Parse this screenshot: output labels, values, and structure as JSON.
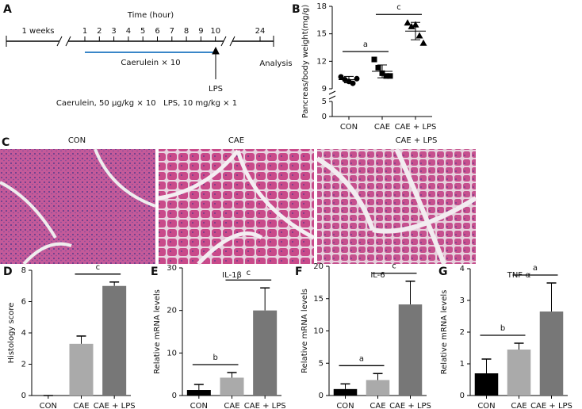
{
  "panel_labels": [
    "A",
    "B",
    "C",
    "D",
    "E",
    "F",
    "G"
  ],
  "timeline": {
    "axis_title": "Time (hour)",
    "period": "1 weeks",
    "ticks": [
      1,
      2,
      3,
      4,
      5,
      6,
      7,
      8,
      9,
      10
    ],
    "end_tick": 24,
    "treatment": "Caerulein × 10",
    "injection": "LPS",
    "endpoint": "Analysis",
    "dosing": "Caerulein, 50 μg/kg × 10   LPS, 10 mg/kg × 1"
  },
  "histology": {
    "groups": [
      "CON",
      "CAE",
      "CAE + LPS"
    ]
  },
  "chart_data": [
    {
      "type": "dot",
      "ylabel": "Pancreas/body weight(mg/g)",
      "categories": [
        "CON",
        "CAE",
        "CAE + LPS"
      ],
      "markers": [
        "circle",
        "square",
        "triangle"
      ],
      "color": "#000000",
      "points": [
        [
          10.3,
          10.0,
          9.8,
          9.6,
          10.1
        ],
        [
          12.2,
          11.3,
          10.7,
          10.4,
          10.4
        ],
        [
          16.2,
          15.8,
          16.0,
          14.8,
          14.0
        ]
      ],
      "means": [
        10.0,
        10.9,
        15.3
      ],
      "sd": [
        0.35,
        0.7,
        0.95
      ],
      "ylim": [
        0,
        18
      ],
      "yticks": [
        0,
        5,
        9,
        12,
        15,
        18
      ],
      "axis_break": [
        5,
        9
      ],
      "annotations": [
        {
          "text": "a",
          "between": [
            0,
            1
          ]
        },
        {
          "text": "c",
          "between": [
            1,
            2
          ]
        }
      ]
    },
    {
      "type": "bar",
      "ylabel": "Histology score",
      "categories": [
        "CON",
        "CAE",
        "CAE + LPS"
      ],
      "values": [
        0,
        3.3,
        7.0
      ],
      "errors": [
        0,
        0.5,
        0.25
      ],
      "colors": [
        "#000000",
        "#aaaaaa",
        "#777777"
      ],
      "ylim": [
        0,
        8
      ],
      "yticks": [
        0,
        2,
        4,
        6,
        8
      ],
      "annotations": [
        {
          "text": "c",
          "between": [
            1,
            2
          ]
        }
      ]
    },
    {
      "type": "bar",
      "title": "IL-1β",
      "ylabel": "Relative mRNA levels",
      "categories": [
        "CON",
        "CAE",
        "CAE + LPS"
      ],
      "values": [
        1.3,
        4.2,
        20.0
      ],
      "errors": [
        1.3,
        1.2,
        5.3
      ],
      "colors": [
        "#000000",
        "#aaaaaa",
        "#777777"
      ],
      "ylim": [
        0,
        30
      ],
      "yticks": [
        0,
        10,
        20,
        30
      ],
      "annotations": [
        {
          "text": "b",
          "between": [
            0,
            1
          ]
        },
        {
          "text": "c",
          "between": [
            1,
            2
          ]
        }
      ]
    },
    {
      "type": "bar",
      "title": "IL-6",
      "ylabel": "Relative mRNA levels",
      "categories": [
        "CON",
        "CAE",
        "CAE + LPS"
      ],
      "values": [
        1.0,
        2.4,
        14.1
      ],
      "errors": [
        0.8,
        1.0,
        3.6
      ],
      "colors": [
        "#000000",
        "#aaaaaa",
        "#777777"
      ],
      "ylim": [
        0,
        20
      ],
      "yticks": [
        0,
        5,
        10,
        15,
        20
      ],
      "annotations": [
        {
          "text": "a",
          "between": [
            0,
            1
          ]
        },
        {
          "text": "c",
          "between": [
            1,
            2
          ]
        }
      ]
    },
    {
      "type": "bar",
      "title": "TNF-α",
      "ylabel": "Relative mRNA levels",
      "categories": [
        "CON",
        "CAE",
        "CAE + LPS"
      ],
      "values": [
        0.7,
        1.45,
        2.65
      ],
      "errors": [
        0.45,
        0.2,
        0.9
      ],
      "colors": [
        "#000000",
        "#aaaaaa",
        "#777777"
      ],
      "ylim": [
        0,
        4
      ],
      "yticks": [
        0,
        1,
        2,
        3,
        4
      ],
      "annotations": [
        {
          "text": "b",
          "between": [
            0,
            1
          ]
        },
        {
          "text": "a",
          "between": [
            1,
            2
          ]
        }
      ]
    }
  ]
}
